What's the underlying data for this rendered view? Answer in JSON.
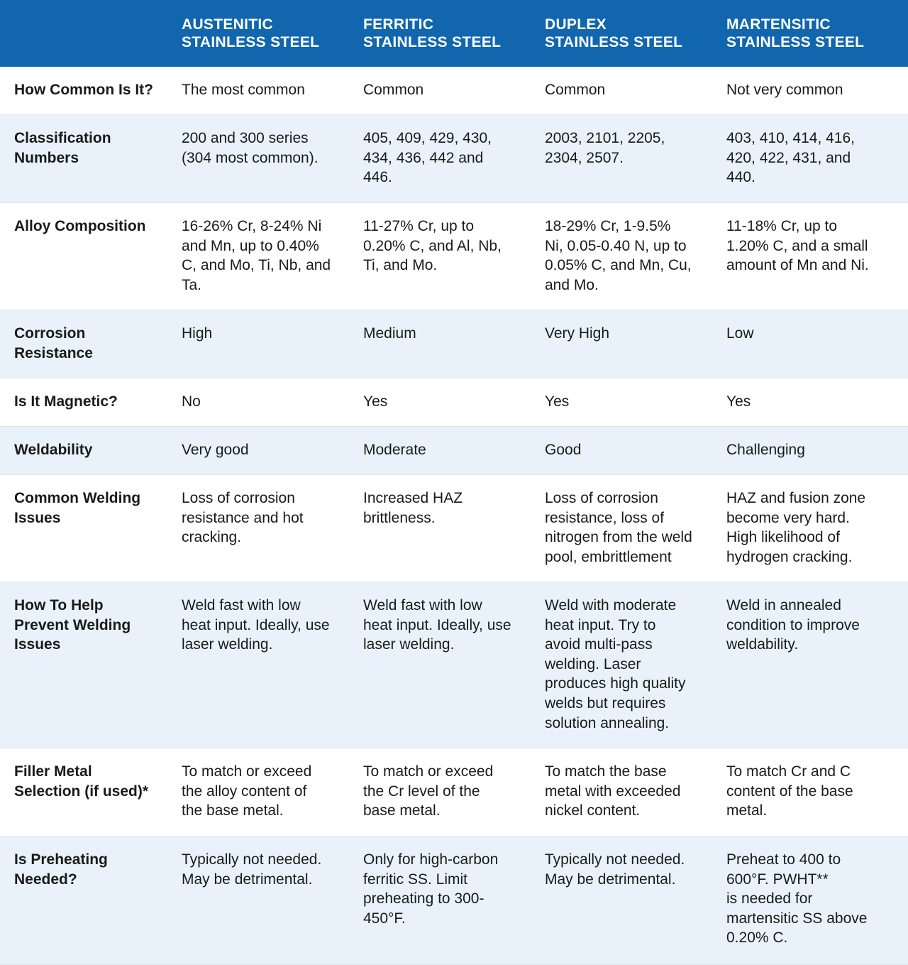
{
  "headers": [
    "",
    [
      "AUSTENITIC",
      "STAINLESS STEEL"
    ],
    [
      "FERRITIC",
      "STAINLESS STEEL"
    ],
    [
      "DUPLEX",
      "STAINLESS STEEL"
    ],
    [
      "MARTENSITIC",
      "STAINLESS STEEL"
    ]
  ],
  "rows": [
    {
      "label": [
        "How Common Is It?"
      ],
      "cells": [
        [
          "The most common"
        ],
        [
          "Common"
        ],
        [
          "Common"
        ],
        [
          "Not very common"
        ]
      ]
    },
    {
      "label": [
        "Classification",
        "Numbers"
      ],
      "cells": [
        [
          "200 and 300 series",
          "(304 most common)."
        ],
        [
          "405, 409, 429, 430,",
          "434, 436, 442 and",
          "446."
        ],
        [
          "2003, 2101, 2205,",
          "2304, 2507."
        ],
        [
          "403, 410, 414, 416,",
          "420, 422, 431, and",
          "440."
        ]
      ]
    },
    {
      "label": [
        "Alloy Composition"
      ],
      "cells": [
        [
          "16-26% Cr, 8-24% Ni",
          "and Mn, up to 0.40%",
          "C, and Mo, Ti, Nb, and",
          "Ta."
        ],
        [
          "11-27% Cr, up to",
          "0.20% C, and Al, Nb,",
          "Ti, and Mo."
        ],
        [
          "18-29% Cr, 1-9.5%",
          "Ni, 0.05-0.40 N, up to",
          "0.05% C, and Mn, Cu,",
          "and Mo."
        ],
        [
          "11-18% Cr, up to",
          "1.20% C, and a small",
          "amount of Mn and Ni."
        ]
      ]
    },
    {
      "label": [
        "Corrosion",
        "Resistance"
      ],
      "cells": [
        [
          "High"
        ],
        [
          "Medium"
        ],
        [
          "Very High"
        ],
        [
          "Low"
        ]
      ]
    },
    {
      "label": [
        "Is It Magnetic?"
      ],
      "cells": [
        [
          "No"
        ],
        [
          "Yes"
        ],
        [
          "Yes"
        ],
        [
          "Yes"
        ]
      ]
    },
    {
      "label": [
        "Weldability"
      ],
      "cells": [
        [
          "Very good"
        ],
        [
          "Moderate"
        ],
        [
          "Good"
        ],
        [
          "Challenging"
        ]
      ]
    },
    {
      "label": [
        "Common Welding",
        "Issues"
      ],
      "cells": [
        [
          "Loss of corrosion",
          "resistance and hot",
          "cracking."
        ],
        [
          "Increased HAZ",
          "brittleness."
        ],
        [
          "Loss of corrosion",
          "resistance, loss of",
          "nitrogen from the weld",
          "pool, embrittlement"
        ],
        [
          "HAZ and fusion zone",
          "become very hard.",
          "High likelihood of",
          "hydrogen cracking."
        ]
      ]
    },
    {
      "label": [
        "How To Help",
        "Prevent Welding",
        "Issues"
      ],
      "cells": [
        [
          "Weld fast with low",
          "heat input. Ideally, use",
          "laser welding."
        ],
        [
          "Weld fast with low",
          "heat input. Ideally, use",
          "laser welding."
        ],
        [
          "Weld with moderate",
          "heat input. Try to",
          "avoid multi-pass",
          "welding. Laser",
          "produces high quality",
          "welds but requires",
          "solution annealing."
        ],
        [
          "Weld in annealed",
          "condition to improve",
          "weldability."
        ]
      ]
    },
    {
      "label": [
        "Filler Metal",
        "Selection (if used)*"
      ],
      "cells": [
        [
          "To match or exceed",
          "the alloy content of",
          "the base metal."
        ],
        [
          "To match or exceed",
          "the Cr level of the",
          "base metal."
        ],
        [
          "To match the base",
          "metal with exceeded",
          "nickel content."
        ],
        [
          "To match Cr and C",
          "content of the base",
          "metal."
        ]
      ]
    },
    {
      "label": [
        "Is Preheating",
        "Needed?"
      ],
      "cells": [
        [
          "Typically not needed.",
          "May be detrimental."
        ],
        [
          "Only for high-carbon",
          "ferritic SS. Limit",
          "preheating to 300-",
          "450°F."
        ],
        [
          "Typically not needed.",
          "May be detrimental."
        ],
        [
          "Preheat to 400 to",
          "600°F. PWHT**",
          "is needed for",
          "martensitic SS above",
          "0.20% C."
        ]
      ]
    }
  ],
  "colors": {
    "header_bg": "#1166ae",
    "header_text": "#ffffff",
    "alt_row_bg": "#e9f2fa",
    "row_bg": "#ffffff",
    "text": "#1a1a1a"
  }
}
